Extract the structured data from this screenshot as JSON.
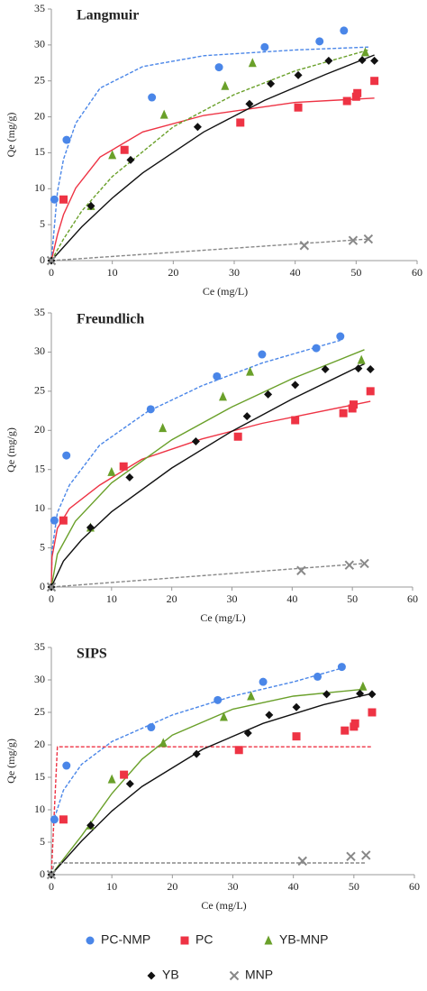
{
  "chart_data": [
    {
      "type": "scatter",
      "title": "Langmuir",
      "xlabel": "Ce (mg/L)",
      "ylabel": "Qe (mg/g)",
      "xlim": [
        0,
        60
      ],
      "ylim": [
        0,
        35
      ],
      "xticks": [
        0,
        10,
        20,
        30,
        40,
        50,
        60
      ],
      "yticks": [
        0,
        5,
        10,
        15,
        20,
        25,
        30,
        35
      ],
      "series": [
        {
          "color": "#4a86e8",
          "marker": "circle",
          "x": [
            0.5,
            2.5,
            16.5,
            27.5,
            35,
            44,
            48
          ],
          "values": [
            8.5,
            16.8,
            22.7,
            26.9,
            29.7,
            30.5,
            32
          ]
        },
        {
          "color": "#ee3344",
          "marker": "square",
          "x": [
            2,
            12,
            31,
            40.5,
            48.5,
            50,
            50.2,
            53
          ],
          "values": [
            8.5,
            15.4,
            19.2,
            21.3,
            22.2,
            22.8,
            23.3,
            25
          ]
        },
        {
          "color": "#6aa02a",
          "marker": "triangle",
          "x": [
            6.5,
            10,
            18.5,
            28.5,
            33,
            51.5
          ],
          "values": [
            7.6,
            14.7,
            20.3,
            24.3,
            27.5,
            29
          ]
        },
        {
          "color": "#111111",
          "marker": "diamond",
          "x": [
            0,
            6.5,
            13,
            24,
            32.5,
            36,
            40.5,
            45.5,
            51,
            53
          ],
          "values": [
            0,
            7.6,
            14,
            18.6,
            21.8,
            24.6,
            25.8,
            27.8,
            27.9,
            27.8
          ]
        },
        {
          "color": "#888888",
          "marker": "cross",
          "x": [
            0,
            41.5,
            49.5,
            52
          ],
          "values": [
            0,
            2.1,
            2.8,
            3
          ]
        }
      ],
      "fits": [
        {
          "color": "#4a86e8",
          "dashed": true,
          "x": [
            0,
            1,
            2,
            4,
            8,
            15,
            25,
            40,
            52
          ],
          "values": [
            0,
            9.6,
            14.1,
            19.1,
            24,
            27,
            28.5,
            29.3,
            29.7
          ]
        },
        {
          "color": "#ee3344",
          "dashed": false,
          "x": [
            0,
            1,
            2,
            4,
            8,
            15,
            25,
            40,
            53
          ],
          "values": [
            0,
            3.6,
            6.4,
            10.1,
            14.4,
            17.9,
            20.2,
            22,
            22.6
          ]
        },
        {
          "color": "#6aa02a",
          "dashed": true,
          "x": [
            0,
            2,
            5,
            10,
            20,
            30,
            40,
            52
          ],
          "values": [
            0,
            3,
            6.9,
            11.7,
            18.6,
            23.1,
            26.4,
            29.3
          ]
        },
        {
          "color": "#111111",
          "dashed": false,
          "x": [
            0,
            5,
            10,
            15,
            25,
            35,
            45,
            53
          ],
          "values": [
            0,
            4.7,
            8.7,
            12.2,
            17.9,
            22.3,
            25.9,
            28.6
          ]
        },
        {
          "color": "#888888",
          "dashed": true,
          "x": [
            0,
            52
          ],
          "values": [
            0,
            3
          ]
        }
      ]
    },
    {
      "type": "scatter",
      "title": "Freundlich",
      "xlabel": "Ce (mg/L)",
      "ylabel": "Qe (mg/g)",
      "xlim": [
        0,
        60
      ],
      "ylim": [
        0,
        35
      ],
      "xticks": [
        0,
        10,
        20,
        30,
        40,
        50,
        60
      ],
      "yticks": [
        0,
        5,
        10,
        15,
        20,
        25,
        30,
        35
      ],
      "series": [
        {
          "color": "#4a86e8",
          "marker": "circle",
          "x": [
            0.5,
            2.5,
            16.5,
            27.5,
            35,
            44,
            48
          ],
          "values": [
            8.5,
            16.8,
            22.7,
            26.9,
            29.7,
            30.5,
            32
          ]
        },
        {
          "color": "#ee3344",
          "marker": "square",
          "x": [
            2,
            12,
            31,
            40.5,
            48.5,
            50,
            50.2,
            53
          ],
          "values": [
            8.5,
            15.4,
            19.2,
            21.3,
            22.2,
            22.8,
            23.3,
            25
          ]
        },
        {
          "color": "#6aa02a",
          "marker": "triangle",
          "x": [
            6.5,
            10,
            18.5,
            28.5,
            33,
            51.5
          ],
          "values": [
            7.6,
            14.7,
            20.3,
            24.3,
            27.5,
            29
          ]
        },
        {
          "color": "#111111",
          "marker": "diamond",
          "x": [
            0,
            6.5,
            13,
            24,
            32.5,
            36,
            40.5,
            45.5,
            51,
            53
          ],
          "values": [
            0,
            7.6,
            14,
            18.6,
            21.8,
            24.6,
            25.8,
            27.8,
            27.9,
            27.8
          ]
        },
        {
          "color": "#888888",
          "marker": "cross",
          "x": [
            0,
            41.5,
            49.5,
            52
          ],
          "values": [
            0,
            2.1,
            2.8,
            3
          ]
        }
      ],
      "fits": [
        {
          "color": "#4a86e8",
          "dashed": true,
          "x": [
            0,
            0.1,
            1,
            3,
            8,
            16,
            25,
            35,
            48
          ],
          "values": [
            0,
            4.6,
            9.5,
            13,
            18.1,
            22.4,
            25.7,
            28.6,
            31.5
          ]
        },
        {
          "color": "#ee3344",
          "dashed": false,
          "x": [
            0,
            0.1,
            1,
            3,
            8,
            15,
            25,
            35,
            53
          ],
          "values": [
            0,
            3.8,
            7.5,
            10,
            13,
            16.3,
            18.9,
            20.9,
            23.7
          ]
        },
        {
          "color": "#6aa02a",
          "dashed": false,
          "x": [
            0,
            1,
            4,
            10,
            20,
            30,
            40,
            52
          ],
          "values": [
            0,
            4.2,
            8.4,
            13.3,
            18.8,
            23,
            26.6,
            30.3
          ]
        },
        {
          "color": "#111111",
          "dashed": false,
          "x": [
            0,
            2,
            5,
            10,
            20,
            30,
            40,
            52
          ],
          "values": [
            0,
            3.3,
            6,
            9.6,
            15.2,
            19.9,
            24,
            28.5
          ]
        },
        {
          "color": "#888888",
          "dashed": true,
          "x": [
            0,
            52
          ],
          "values": [
            0,
            3
          ]
        }
      ]
    },
    {
      "type": "scatter",
      "title": "SIPS",
      "xlabel": "Ce (mg/L)",
      "ylabel": "Qe (mg/g)",
      "xlim": [
        0,
        60
      ],
      "ylim": [
        0,
        35
      ],
      "xticks": [
        0,
        10,
        20,
        30,
        40,
        50,
        60
      ],
      "yticks": [
        0,
        5,
        10,
        15,
        20,
        25,
        30,
        35
      ],
      "series": [
        {
          "name": "PC-NMP",
          "color": "#4a86e8",
          "marker": "circle",
          "x": [
            0.5,
            2.5,
            16.5,
            27.5,
            35,
            44,
            48
          ],
          "values": [
            8.5,
            16.8,
            22.7,
            26.9,
            29.7,
            30.5,
            32
          ]
        },
        {
          "name": "PC",
          "color": "#ee3344",
          "marker": "square",
          "x": [
            2,
            12,
            31,
            40.5,
            48.5,
            50,
            50.2,
            53
          ],
          "values": [
            8.5,
            15.4,
            19.2,
            21.3,
            22.2,
            22.8,
            23.3,
            25
          ]
        },
        {
          "name": "YB-MNP",
          "color": "#6aa02a",
          "marker": "triangle",
          "x": [
            6.5,
            10,
            18.5,
            28.5,
            33,
            51.5
          ],
          "values": [
            7.6,
            14.7,
            20.3,
            24.3,
            27.5,
            29
          ]
        },
        {
          "name": "YB",
          "color": "#111111",
          "marker": "diamond",
          "x": [
            0,
            6.5,
            13,
            24,
            32.5,
            36,
            40.5,
            45.5,
            51,
            53
          ],
          "values": [
            0,
            7.6,
            14,
            18.6,
            21.8,
            24.6,
            25.8,
            27.8,
            27.9,
            27.8
          ]
        },
        {
          "name": "MNP",
          "color": "#888888",
          "marker": "cross",
          "x": [
            0,
            41.5,
            49.5,
            52
          ],
          "values": [
            0,
            2.1,
            2.8,
            3
          ]
        }
      ],
      "fits": [
        {
          "color": "#4a86e8",
          "dashed": true,
          "x": [
            0.5,
            2,
            5,
            10,
            20,
            30,
            40,
            48
          ],
          "values": [
            8.7,
            13,
            17,
            20.5,
            24.6,
            27.5,
            29.7,
            31.8
          ]
        },
        {
          "color": "#ee3344",
          "dashed": true,
          "x": [
            0,
            1,
            53
          ],
          "values": [
            0,
            19.7,
            19.7
          ]
        },
        {
          "color": "#6aa02a",
          "dashed": false,
          "x": [
            0,
            5,
            10,
            15,
            20,
            30,
            40,
            52
          ],
          "values": [
            0,
            6,
            12.5,
            17.8,
            21.5,
            25.5,
            27.5,
            28.6
          ]
        },
        {
          "color": "#111111",
          "dashed": false,
          "x": [
            0,
            5,
            10,
            15,
            25,
            35,
            45,
            53
          ],
          "values": [
            0,
            5.2,
            9.8,
            13.6,
            19.3,
            23.3,
            26.2,
            27.9
          ]
        },
        {
          "color": "#888888",
          "dashed": true,
          "x": [
            0,
            0.5,
            52
          ],
          "values": [
            0,
            1.8,
            1.8
          ]
        }
      ]
    }
  ]
}
